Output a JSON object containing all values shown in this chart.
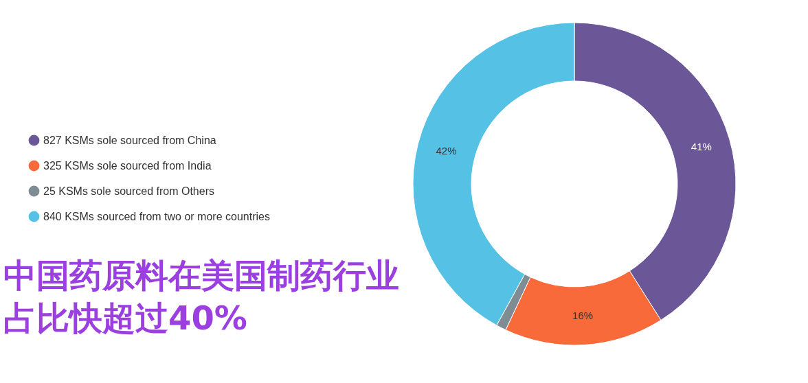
{
  "chart_data": {
    "type": "donut",
    "title": "中国药原料在美国制药行业占比快超过40%",
    "categories": [
      "827 KSMs sole sourced from China",
      "325 KSMs sole sourced from India",
      "25 KSMs sole sourced from Others",
      "840 KSMs sourced from two or more countries"
    ],
    "values": [
      41,
      16,
      1,
      42
    ],
    "value_labels": [
      "41%",
      "16%",
      null,
      "42%"
    ],
    "colors": [
      "#6b5797",
      "#f96a3a",
      "#7f8c93",
      "#55c1e5"
    ],
    "legend": "left"
  }
}
